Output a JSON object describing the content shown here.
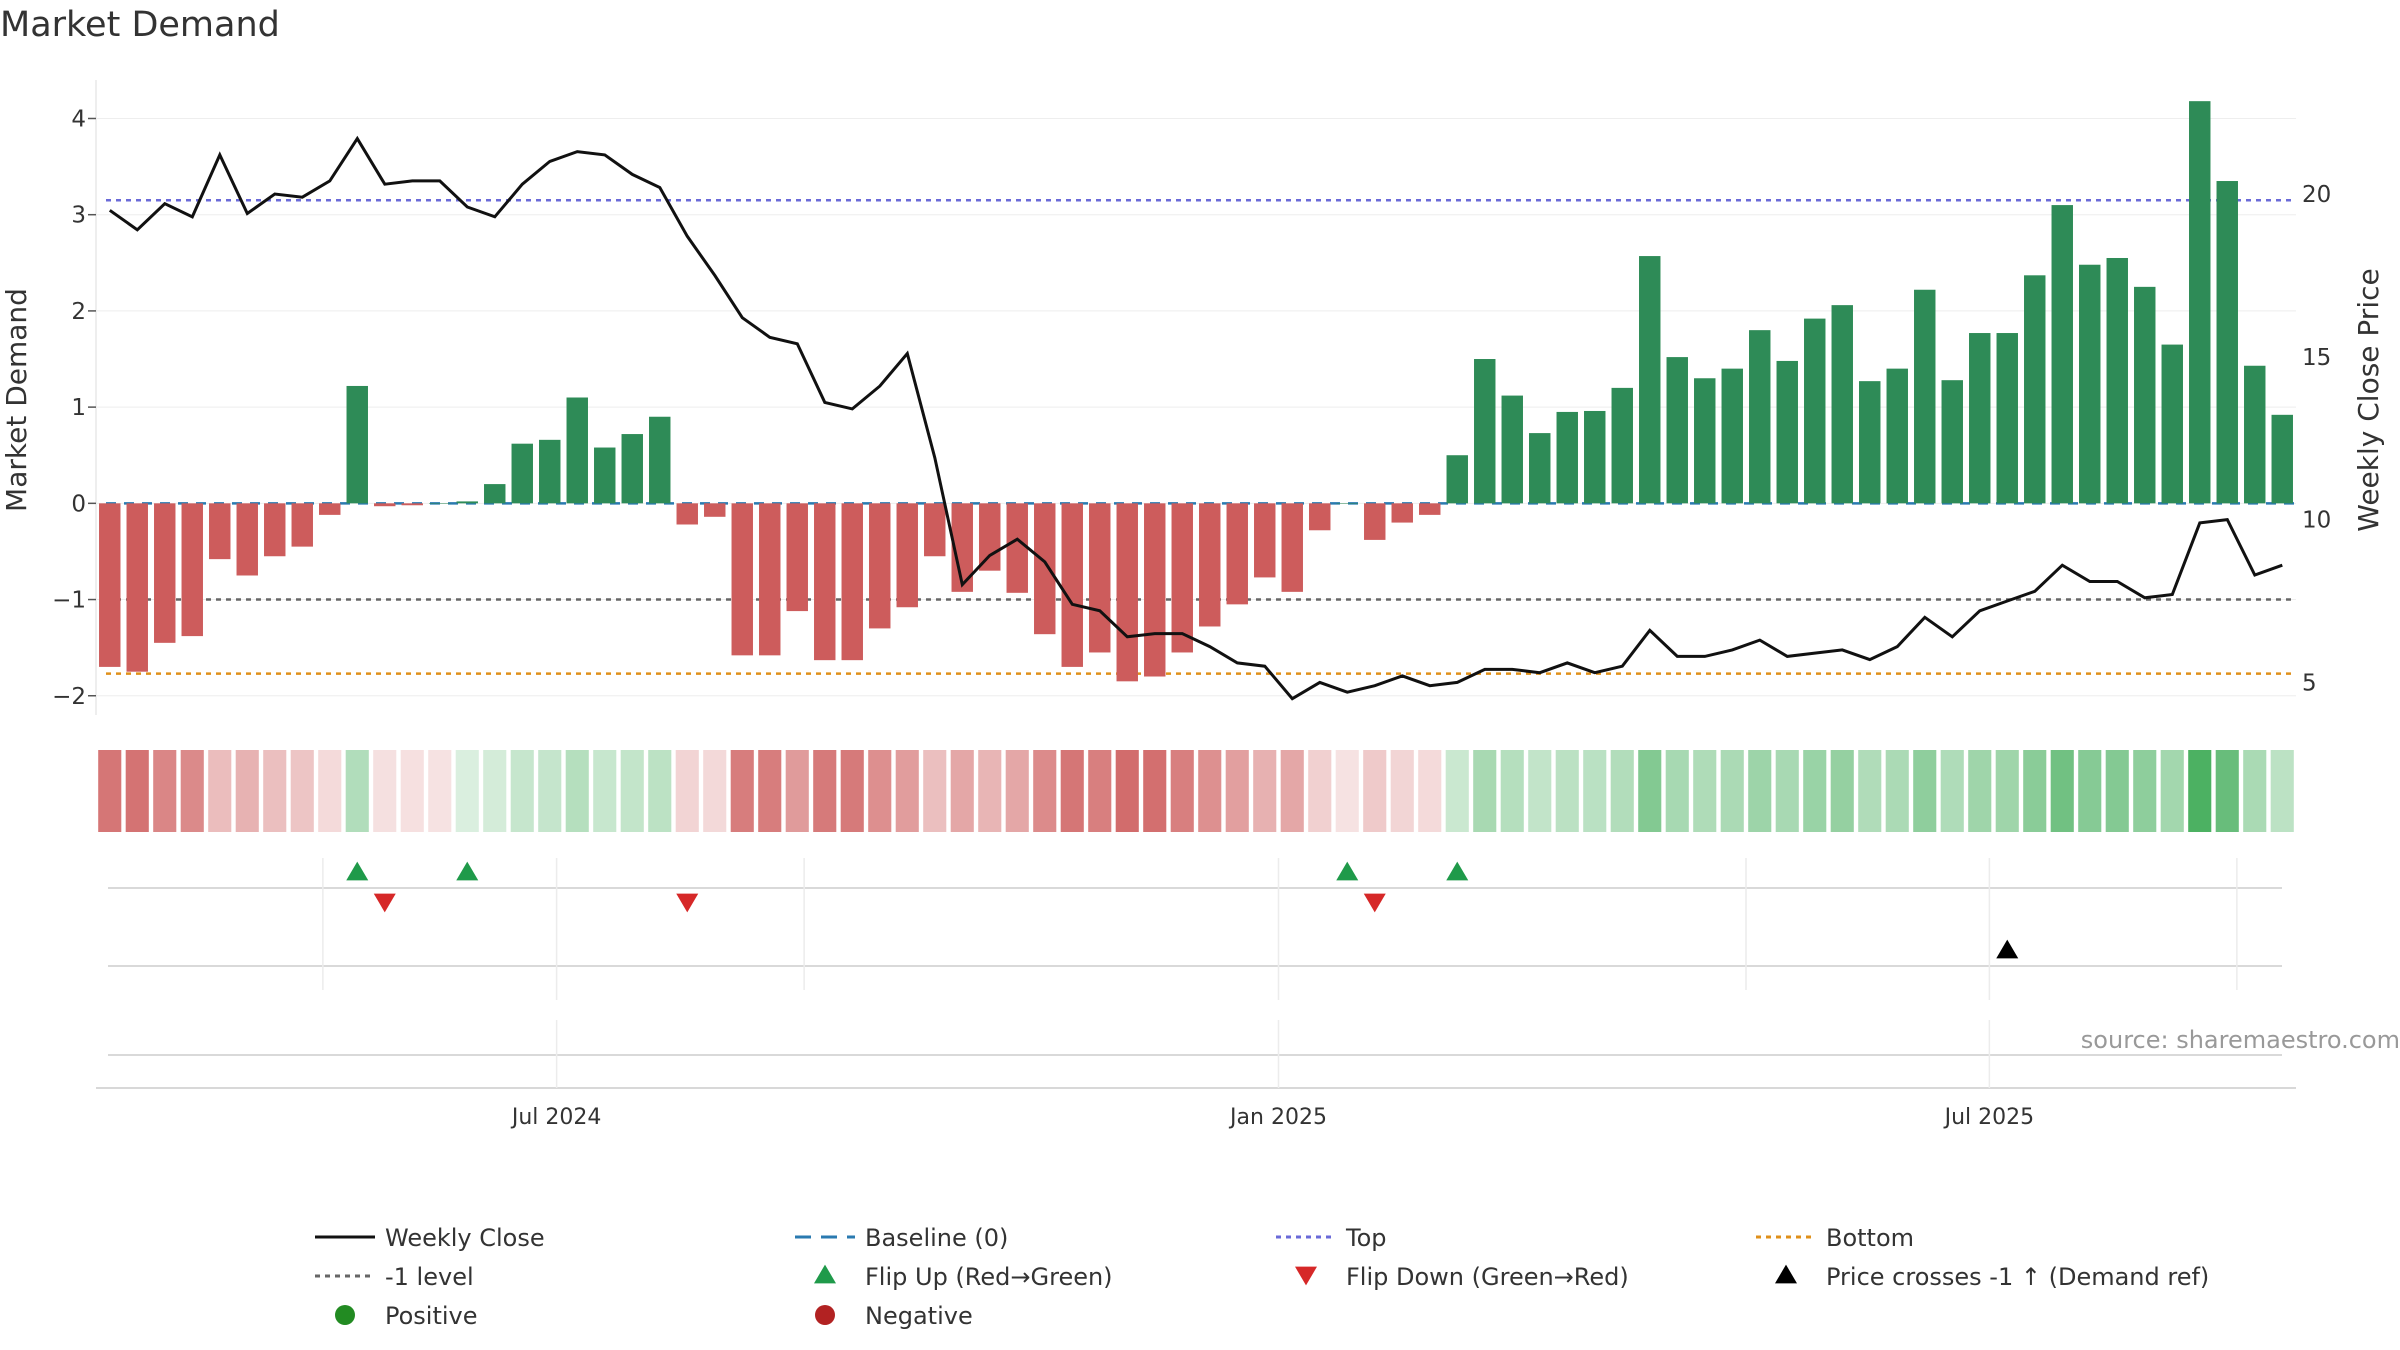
{
  "chart_data": {
    "type": "bar",
    "title": "Market Demand",
    "ylabel": "Market Demand",
    "y2label": "Weekly Close Price",
    "ylim": [
      -2.2,
      4.4
    ],
    "y2lim": [
      4,
      23.5
    ],
    "yticks": [
      -2,
      -1,
      0,
      1,
      2,
      3,
      4
    ],
    "y2ticks": [
      5,
      10,
      15,
      20
    ],
    "xticks": [
      {
        "label": "Jul 2024",
        "week": 16.25
      },
      {
        "label": "Jan 2025",
        "week": 42.5
      },
      {
        "label": "Jul 2025",
        "week": 68.35
      }
    ],
    "weeks": 80,
    "series": [
      {
        "name": "Market Demand",
        "type": "bar",
        "values": [
          -1.7,
          -1.75,
          -1.45,
          -1.38,
          -0.58,
          -0.75,
          -0.55,
          -0.45,
          -0.12,
          1.22,
          -0.03,
          -0.02,
          0,
          0.02,
          0.2,
          0.62,
          0.66,
          1.1,
          0.58,
          0.72,
          0.9,
          -0.22,
          -0.14,
          -1.58,
          -1.58,
          -1.12,
          -1.63,
          -1.63,
          -1.3,
          -1.08,
          -0.55,
          -0.92,
          -0.7,
          -0.93,
          -1.36,
          -1.7,
          -1.55,
          -1.85,
          -1.8,
          -1.55,
          -1.28,
          -1.05,
          -0.77,
          -0.92,
          -0.28,
          0,
          -0.38,
          -0.2,
          -0.12,
          0.5,
          1.5,
          1.12,
          0.73,
          0.95,
          0.96,
          1.2,
          2.57,
          1.52,
          1.3,
          1.4,
          1.8,
          1.48,
          1.92,
          2.06,
          1.27,
          1.4,
          2.22,
          1.28,
          1.77,
          1.77,
          2.37,
          3.1,
          2.48,
          2.55,
          2.25,
          1.65,
          4.18,
          3.35,
          1.43,
          0.92
        ]
      },
      {
        "name": "Weekly Close",
        "type": "line",
        "values": [
          19.5,
          18.9,
          19.7,
          19.3,
          21.2,
          19.4,
          20.0,
          19.9,
          20.4,
          21.7,
          20.3,
          20.4,
          20.4,
          19.6,
          19.3,
          20.3,
          21.0,
          21.3,
          21.2,
          20.6,
          20.2,
          18.7,
          17.5,
          16.2,
          15.6,
          15.4,
          13.6,
          13.4,
          14.1,
          15.1,
          11.9,
          8.0,
          8.9,
          9.4,
          8.7,
          7.4,
          7.2,
          6.4,
          6.5,
          6.5,
          6.1,
          5.6,
          5.5,
          4.5,
          5.0,
          4.7,
          4.9,
          5.2,
          4.9,
          5.0,
          5.4,
          5.4,
          5.3,
          5.6,
          5.3,
          5.5,
          6.6,
          5.8,
          5.8,
          6.0,
          6.3,
          5.8,
          5.9,
          6.0,
          5.7,
          6.1,
          7.0,
          6.4,
          7.2,
          7.5,
          7.8,
          8.6,
          8.1,
          8.1,
          7.6,
          7.7,
          9.9,
          10.0,
          8.3,
          8.6
        ]
      }
    ],
    "reference_lines": [
      {
        "name": "Top",
        "value": 3.15,
        "color": "#6a6ad8"
      },
      {
        "name": "-1 level",
        "value": -1,
        "color": "#666666"
      },
      {
        "name": "Bottom",
        "value": -1.77,
        "color": "#e0901a"
      },
      {
        "name": "Baseline (0)",
        "value": 0,
        "color": "#2a7ab0"
      }
    ],
    "flip_up_weeks": [
      9,
      13,
      45,
      49
    ],
    "flip_down_weeks": [
      10,
      21,
      46
    ],
    "price_cross_weeks": [
      69
    ],
    "colors": {
      "positive": "#2e8b57",
      "negative": "#cd5c5c",
      "line": "#111111"
    },
    "annotation": "source: sharemaestro.com",
    "legend": {
      "position": "bottom",
      "items": [
        {
          "label": "Weekly Close",
          "marker": "line",
          "color": "#111111"
        },
        {
          "label": "Baseline (0)",
          "marker": "dash",
          "color": "#2a7ab0"
        },
        {
          "label": "Top",
          "marker": "dot",
          "color": "#6a6ad8"
        },
        {
          "label": "Bottom",
          "marker": "dot",
          "color": "#e0901a"
        },
        {
          "label": "-1 level",
          "marker": "dot",
          "color": "#666666"
        },
        {
          "label": "Flip Up (Red→Green)",
          "marker": "triangle-up",
          "color": "#1f9a4a"
        },
        {
          "label": "Flip Down (Green→Red)",
          "marker": "triangle-down",
          "color": "#d62828"
        },
        {
          "label": "Price crosses -1 ↑ (Demand ref)",
          "marker": "triangle-up",
          "color": "#000000"
        },
        {
          "label": "Positive",
          "marker": "circle",
          "color": "#228b22"
        },
        {
          "label": "Negative",
          "marker": "circle",
          "color": "#b22222"
        }
      ]
    }
  }
}
